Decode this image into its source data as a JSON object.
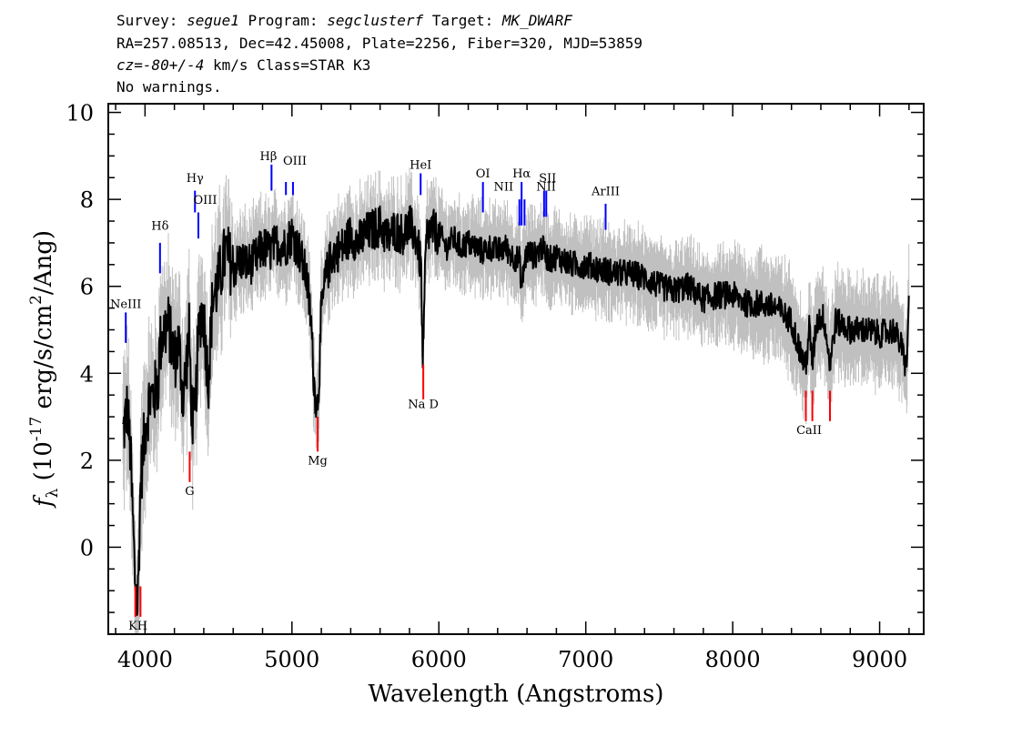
{
  "header": {
    "survey_prefix": "Survey: ",
    "survey": "segue1",
    "program_prefix": " Program: ",
    "program": "segclusterf",
    "target_prefix": " Target: ",
    "target": "MK_DWARF",
    "line2": "RA=257.08513, Dec=42.45008, Plate=2256, Fiber=320, MJD=53859",
    "cz_label": "cz",
    "cz_value": "=-80+/-4",
    "cz_rest": " km/s Class=STAR K3",
    "line4": "No warnings."
  },
  "chart_data": {
    "type": "line",
    "xlabel": "Wavelength (Angstroms)",
    "ylabel": "f_λ (10^-17 erg/s/cm^2/Ang)",
    "xlim": [
      3750,
      9300
    ],
    "ylim": [
      -2,
      10.2
    ],
    "x_ticks": [
      4000,
      5000,
      6000,
      7000,
      8000,
      9000
    ],
    "y_ticks": [
      0,
      2,
      4,
      6,
      8,
      10
    ],
    "colors": {
      "flux": "#000000",
      "error_band": "#c0c0c0",
      "emission": "#0000ff",
      "absorption": "#ff0000"
    },
    "series": [
      {
        "role": "flux",
        "x": [
          3850,
          3880,
          3900,
          3930,
          3950,
          3970,
          4000,
          4030,
          4060,
          4090,
          4100,
          4130,
          4160,
          4200,
          4230,
          4260,
          4300,
          4320,
          4340,
          4360,
          4380,
          4400,
          4430,
          4460,
          4500,
          4550,
          4600,
          4650,
          4700,
          4750,
          4800,
          4850,
          4900,
          4950,
          5000,
          5050,
          5100,
          5130,
          5150,
          5170,
          5185,
          5200,
          5230,
          5270,
          5300,
          5350,
          5400,
          5450,
          5500,
          5550,
          5600,
          5650,
          5700,
          5750,
          5800,
          5850,
          5880,
          5890,
          5896,
          5905,
          5920,
          5950,
          6000,
          6050,
          6100,
          6150,
          6200,
          6250,
          6300,
          6350,
          6400,
          6450,
          6500,
          6550,
          6563,
          6580,
          6600,
          6650,
          6700,
          6750,
          6800,
          6900,
          7000,
          7100,
          7200,
          7300,
          7400,
          7500,
          7600,
          7700,
          7800,
          7900,
          8000,
          8100,
          8200,
          8300,
          8400,
          8450,
          8498,
          8520,
          8542,
          8570,
          8620,
          8662,
          8700,
          8800,
          8900,
          9000,
          9100,
          9150,
          9180,
          9200
        ],
        "y": [
          2.6,
          3.2,
          2.2,
          -0.6,
          -1.4,
          1.5,
          2.7,
          3.4,
          3.5,
          3.8,
          4.6,
          5.0,
          5.1,
          4.3,
          4.7,
          3.4,
          4.9,
          3.0,
          2.9,
          4.6,
          5.4,
          5.3,
          3.8,
          5.7,
          6.1,
          6.8,
          6.4,
          6.6,
          6.5,
          6.6,
          6.9,
          6.8,
          7.0,
          6.9,
          7.2,
          6.8,
          6.2,
          5.2,
          3.8,
          3.2,
          3.9,
          5.4,
          6.2,
          6.7,
          6.8,
          6.9,
          7.2,
          7.0,
          7.2,
          7.3,
          7.4,
          7.1,
          7.3,
          7.2,
          7.4,
          7.1,
          6.4,
          4.2,
          4.5,
          6.3,
          7.2,
          7.3,
          7.2,
          6.9,
          7.1,
          6.9,
          7.0,
          6.9,
          6.8,
          6.9,
          6.8,
          6.9,
          6.7,
          6.6,
          5.9,
          6.5,
          6.8,
          6.7,
          6.9,
          6.6,
          6.7,
          6.5,
          6.5,
          6.4,
          6.3,
          6.3,
          6.2,
          6.0,
          5.9,
          6.0,
          5.7,
          5.8,
          5.8,
          5.6,
          5.6,
          5.5,
          5.2,
          4.6,
          4.1,
          5.1,
          4.2,
          5.2,
          5.3,
          4.2,
          5.2,
          5.0,
          5.0,
          4.9,
          5.0,
          4.6,
          4.1,
          5.6
        ]
      }
    ],
    "emission_lines": [
      {
        "label": "NeIII",
        "wave": 3869,
        "label_y": 5.5,
        "line_top": 5.4,
        "line_bottom": 4.7
      },
      {
        "label": "Hδ",
        "wave": 4102,
        "label_y": 7.3,
        "line_top": 7.0,
        "line_bottom": 6.3
      },
      {
        "label": "Hγ",
        "wave": 4340,
        "label_y": 8.4,
        "line_top": 8.2,
        "line_bottom": 7.7
      },
      {
        "label": "OIII",
        "wave": 4363,
        "label_y": 7.9,
        "line_top": 7.7,
        "line_bottom": 7.1
      },
      {
        "label": "Hβ",
        "wave": 4861,
        "label_y": 8.9,
        "line_top": 8.8,
        "line_bottom": 8.2
      },
      {
        "label": "OIII",
        "wave": 4959,
        "label_y": 8.8,
        "line_top": 8.4,
        "line_bottom": 8.1
      },
      {
        "label": "OIII",
        "wave": 5007,
        "label_y": 8.8,
        "line_top": 8.4,
        "line_bottom": 8.1
      },
      {
        "label": "HeI",
        "wave": 5876,
        "label_y": 8.7,
        "line_top": 8.6,
        "line_bottom": 8.1
      },
      {
        "label": "OI",
        "wave": 6300,
        "label_y": 8.5,
        "line_top": 8.4,
        "line_bottom": 7.7
      },
      {
        "label": "NII",
        "wave": 6548,
        "label_y": 8.2,
        "line_top": 8.0,
        "line_bottom": 7.4
      },
      {
        "label": "Hα",
        "wave": 6563,
        "label_y": 8.5,
        "line_top": 8.4,
        "line_bottom": 7.4
      },
      {
        "label": "NII",
        "wave": 6583,
        "label_y": 8.2,
        "line_top": 8.0,
        "line_bottom": 7.4
      },
      {
        "label": "SII",
        "wave": 6716,
        "label_y": 8.4,
        "line_top": 8.2,
        "line_bottom": 7.6
      },
      {
        "label": "SII",
        "wave": 6731,
        "label_y": 8.4,
        "line_top": 8.2,
        "line_bottom": 7.6
      },
      {
        "label": "ArIII",
        "wave": 7135,
        "label_y": 8.1,
        "line_top": 7.9,
        "line_bottom": 7.3
      }
    ],
    "emission_label_items": [
      {
        "label": "NeIII",
        "wave": 3869,
        "label_y": 5.5
      },
      {
        "label": "Hδ",
        "wave": 4102,
        "label_y": 7.3
      },
      {
        "label": "Hγ",
        "wave": 4340,
        "label_y": 8.4
      },
      {
        "label": "OIII",
        "wave": 4410,
        "label_y": 7.9
      },
      {
        "label": "Hβ",
        "wave": 4840,
        "label_y": 8.9
      },
      {
        "label": "OIII",
        "wave": 5020,
        "label_y": 8.8
      },
      {
        "label": "HeI",
        "wave": 5876,
        "label_y": 8.7
      },
      {
        "label": "OI",
        "wave": 6300,
        "label_y": 8.5
      },
      {
        "label": "NII",
        "wave": 6440,
        "label_y": 8.2
      },
      {
        "label": "Hα",
        "wave": 6563,
        "label_y": 8.5
      },
      {
        "label": "NII",
        "wave": 6730,
        "label_y": 8.2
      },
      {
        "label": "SII",
        "wave": 6740,
        "label_y": 8.4
      },
      {
        "label": "ArIII",
        "wave": 7135,
        "label_y": 8.1
      }
    ],
    "absorption_lines": [
      {
        "label": "K",
        "wave": 3934,
        "line_top": -0.9,
        "line_bottom": -1.6
      },
      {
        "label": "H",
        "wave": 3969,
        "line_top": -0.9,
        "line_bottom": -1.6
      },
      {
        "label": "G",
        "wave": 4304,
        "line_top": 2.2,
        "line_bottom": 1.5
      },
      {
        "label": "Mg",
        "wave": 5175,
        "line_top": 3.0,
        "line_bottom": 2.2
      },
      {
        "label": "Na D",
        "wave": 5894,
        "line_top": 4.2,
        "line_bottom": 3.4
      },
      {
        "label": "CaII",
        "wave": 8498,
        "line_top": 3.6,
        "line_bottom": 2.9
      },
      {
        "label": "CaII",
        "wave": 8542,
        "line_top": 3.6,
        "line_bottom": 2.9
      },
      {
        "label": "CaII",
        "wave": 8662,
        "line_top": 3.6,
        "line_bottom": 2.9
      }
    ],
    "absorption_label_items": [
      {
        "label": "KH",
        "wave": 3952,
        "label_y": -1.9
      },
      {
        "label": "G",
        "wave": 4304,
        "label_y": 1.2
      },
      {
        "label": "Mg",
        "wave": 5175,
        "label_y": 1.9
      },
      {
        "label": "Na D",
        "wave": 5894,
        "label_y": 3.2
      },
      {
        "label": "CaII",
        "wave": 8520,
        "label_y": 2.6
      }
    ]
  }
}
